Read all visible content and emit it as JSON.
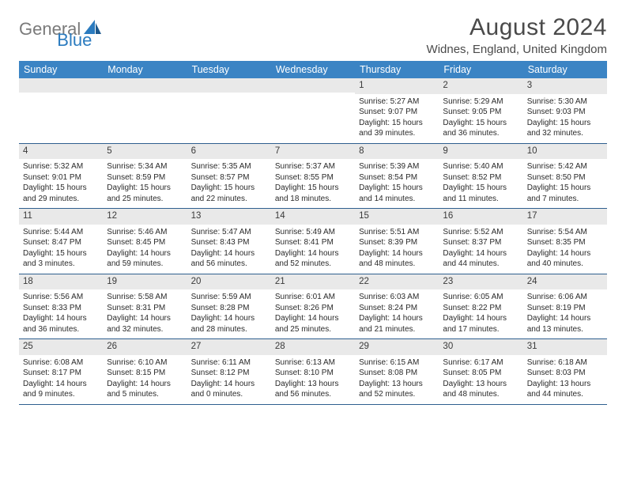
{
  "logo": {
    "part1": "General",
    "part2": "Blue"
  },
  "title": "August 2024",
  "location": "Widnes, England, United Kingdom",
  "colors": {
    "header_bg": "#3b84c4",
    "header_text": "#ffffff",
    "daynum_bg": "#e9e9e9",
    "week_border": "#2f5f8f",
    "logo_gray": "#7a7a7a",
    "logo_blue": "#2b7bbf",
    "text": "#2a2a2a"
  },
  "day_names": [
    "Sunday",
    "Monday",
    "Tuesday",
    "Wednesday",
    "Thursday",
    "Friday",
    "Saturday"
  ],
  "weeks": [
    [
      {
        "day": "",
        "sunrise": "",
        "sunset": "",
        "daylight": ""
      },
      {
        "day": "",
        "sunrise": "",
        "sunset": "",
        "daylight": ""
      },
      {
        "day": "",
        "sunrise": "",
        "sunset": "",
        "daylight": ""
      },
      {
        "day": "",
        "sunrise": "",
        "sunset": "",
        "daylight": ""
      },
      {
        "day": "1",
        "sunrise": "Sunrise: 5:27 AM",
        "sunset": "Sunset: 9:07 PM",
        "daylight": "Daylight: 15 hours and 39 minutes."
      },
      {
        "day": "2",
        "sunrise": "Sunrise: 5:29 AM",
        "sunset": "Sunset: 9:05 PM",
        "daylight": "Daylight: 15 hours and 36 minutes."
      },
      {
        "day": "3",
        "sunrise": "Sunrise: 5:30 AM",
        "sunset": "Sunset: 9:03 PM",
        "daylight": "Daylight: 15 hours and 32 minutes."
      }
    ],
    [
      {
        "day": "4",
        "sunrise": "Sunrise: 5:32 AM",
        "sunset": "Sunset: 9:01 PM",
        "daylight": "Daylight: 15 hours and 29 minutes."
      },
      {
        "day": "5",
        "sunrise": "Sunrise: 5:34 AM",
        "sunset": "Sunset: 8:59 PM",
        "daylight": "Daylight: 15 hours and 25 minutes."
      },
      {
        "day": "6",
        "sunrise": "Sunrise: 5:35 AM",
        "sunset": "Sunset: 8:57 PM",
        "daylight": "Daylight: 15 hours and 22 minutes."
      },
      {
        "day": "7",
        "sunrise": "Sunrise: 5:37 AM",
        "sunset": "Sunset: 8:55 PM",
        "daylight": "Daylight: 15 hours and 18 minutes."
      },
      {
        "day": "8",
        "sunrise": "Sunrise: 5:39 AM",
        "sunset": "Sunset: 8:54 PM",
        "daylight": "Daylight: 15 hours and 14 minutes."
      },
      {
        "day": "9",
        "sunrise": "Sunrise: 5:40 AM",
        "sunset": "Sunset: 8:52 PM",
        "daylight": "Daylight: 15 hours and 11 minutes."
      },
      {
        "day": "10",
        "sunrise": "Sunrise: 5:42 AM",
        "sunset": "Sunset: 8:50 PM",
        "daylight": "Daylight: 15 hours and 7 minutes."
      }
    ],
    [
      {
        "day": "11",
        "sunrise": "Sunrise: 5:44 AM",
        "sunset": "Sunset: 8:47 PM",
        "daylight": "Daylight: 15 hours and 3 minutes."
      },
      {
        "day": "12",
        "sunrise": "Sunrise: 5:46 AM",
        "sunset": "Sunset: 8:45 PM",
        "daylight": "Daylight: 14 hours and 59 minutes."
      },
      {
        "day": "13",
        "sunrise": "Sunrise: 5:47 AM",
        "sunset": "Sunset: 8:43 PM",
        "daylight": "Daylight: 14 hours and 56 minutes."
      },
      {
        "day": "14",
        "sunrise": "Sunrise: 5:49 AM",
        "sunset": "Sunset: 8:41 PM",
        "daylight": "Daylight: 14 hours and 52 minutes."
      },
      {
        "day": "15",
        "sunrise": "Sunrise: 5:51 AM",
        "sunset": "Sunset: 8:39 PM",
        "daylight": "Daylight: 14 hours and 48 minutes."
      },
      {
        "day": "16",
        "sunrise": "Sunrise: 5:52 AM",
        "sunset": "Sunset: 8:37 PM",
        "daylight": "Daylight: 14 hours and 44 minutes."
      },
      {
        "day": "17",
        "sunrise": "Sunrise: 5:54 AM",
        "sunset": "Sunset: 8:35 PM",
        "daylight": "Daylight: 14 hours and 40 minutes."
      }
    ],
    [
      {
        "day": "18",
        "sunrise": "Sunrise: 5:56 AM",
        "sunset": "Sunset: 8:33 PM",
        "daylight": "Daylight: 14 hours and 36 minutes."
      },
      {
        "day": "19",
        "sunrise": "Sunrise: 5:58 AM",
        "sunset": "Sunset: 8:31 PM",
        "daylight": "Daylight: 14 hours and 32 minutes."
      },
      {
        "day": "20",
        "sunrise": "Sunrise: 5:59 AM",
        "sunset": "Sunset: 8:28 PM",
        "daylight": "Daylight: 14 hours and 28 minutes."
      },
      {
        "day": "21",
        "sunrise": "Sunrise: 6:01 AM",
        "sunset": "Sunset: 8:26 PM",
        "daylight": "Daylight: 14 hours and 25 minutes."
      },
      {
        "day": "22",
        "sunrise": "Sunrise: 6:03 AM",
        "sunset": "Sunset: 8:24 PM",
        "daylight": "Daylight: 14 hours and 21 minutes."
      },
      {
        "day": "23",
        "sunrise": "Sunrise: 6:05 AM",
        "sunset": "Sunset: 8:22 PM",
        "daylight": "Daylight: 14 hours and 17 minutes."
      },
      {
        "day": "24",
        "sunrise": "Sunrise: 6:06 AM",
        "sunset": "Sunset: 8:19 PM",
        "daylight": "Daylight: 14 hours and 13 minutes."
      }
    ],
    [
      {
        "day": "25",
        "sunrise": "Sunrise: 6:08 AM",
        "sunset": "Sunset: 8:17 PM",
        "daylight": "Daylight: 14 hours and 9 minutes."
      },
      {
        "day": "26",
        "sunrise": "Sunrise: 6:10 AM",
        "sunset": "Sunset: 8:15 PM",
        "daylight": "Daylight: 14 hours and 5 minutes."
      },
      {
        "day": "27",
        "sunrise": "Sunrise: 6:11 AM",
        "sunset": "Sunset: 8:12 PM",
        "daylight": "Daylight: 14 hours and 0 minutes."
      },
      {
        "day": "28",
        "sunrise": "Sunrise: 6:13 AM",
        "sunset": "Sunset: 8:10 PM",
        "daylight": "Daylight: 13 hours and 56 minutes."
      },
      {
        "day": "29",
        "sunrise": "Sunrise: 6:15 AM",
        "sunset": "Sunset: 8:08 PM",
        "daylight": "Daylight: 13 hours and 52 minutes."
      },
      {
        "day": "30",
        "sunrise": "Sunrise: 6:17 AM",
        "sunset": "Sunset: 8:05 PM",
        "daylight": "Daylight: 13 hours and 48 minutes."
      },
      {
        "day": "31",
        "sunrise": "Sunrise: 6:18 AM",
        "sunset": "Sunset: 8:03 PM",
        "daylight": "Daylight: 13 hours and 44 minutes."
      }
    ]
  ]
}
